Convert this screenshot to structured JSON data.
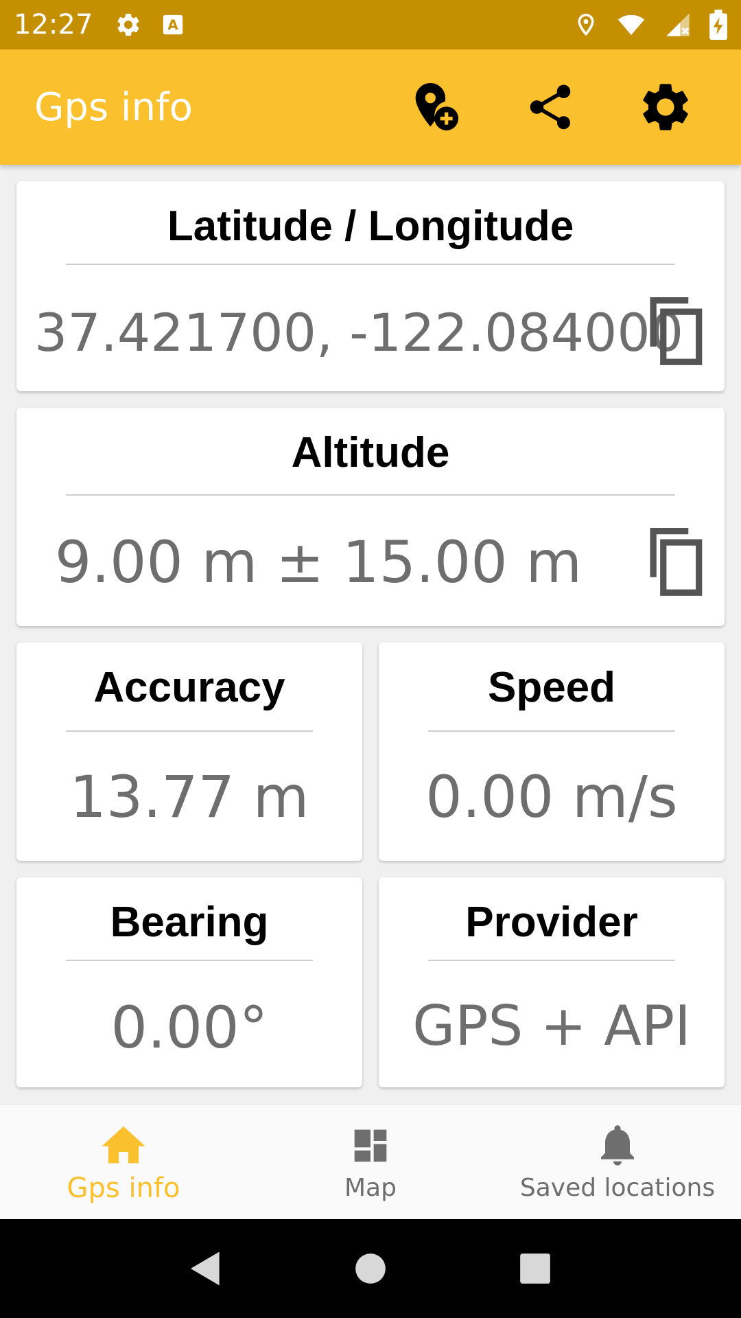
{
  "status_bar": {
    "time": "12:27"
  },
  "app_bar": {
    "title": "Gps info",
    "actions": [
      "add-location-icon",
      "share-icon",
      "settings-icon"
    ]
  },
  "cards": {
    "latlon": {
      "title": "Latitude / Longitude",
      "value": "37.421700, -122.084000"
    },
    "altitude": {
      "title": "Altitude",
      "value": "9.00 m ± 15.00 m"
    },
    "accuracy": {
      "title": "Accuracy",
      "value": "13.77 m"
    },
    "speed": {
      "title": "Speed",
      "value": "0.00 m/s"
    },
    "bearing": {
      "title": "Bearing",
      "value": "0.00°"
    },
    "provider": {
      "title": "Provider",
      "value": "GPS + API"
    }
  },
  "bottom_nav": {
    "items": [
      {
        "label": "Gps info",
        "icon": "home-icon",
        "active": true
      },
      {
        "label": "Map",
        "icon": "dashboard-icon",
        "active": false
      },
      {
        "label": "Saved locations",
        "icon": "bell-icon",
        "active": false
      }
    ]
  },
  "colors": {
    "status_bar": "#c48f00",
    "app_bar": "#fbc02d",
    "accent": "#fbc02d",
    "value_text": "#6e6e6e"
  }
}
